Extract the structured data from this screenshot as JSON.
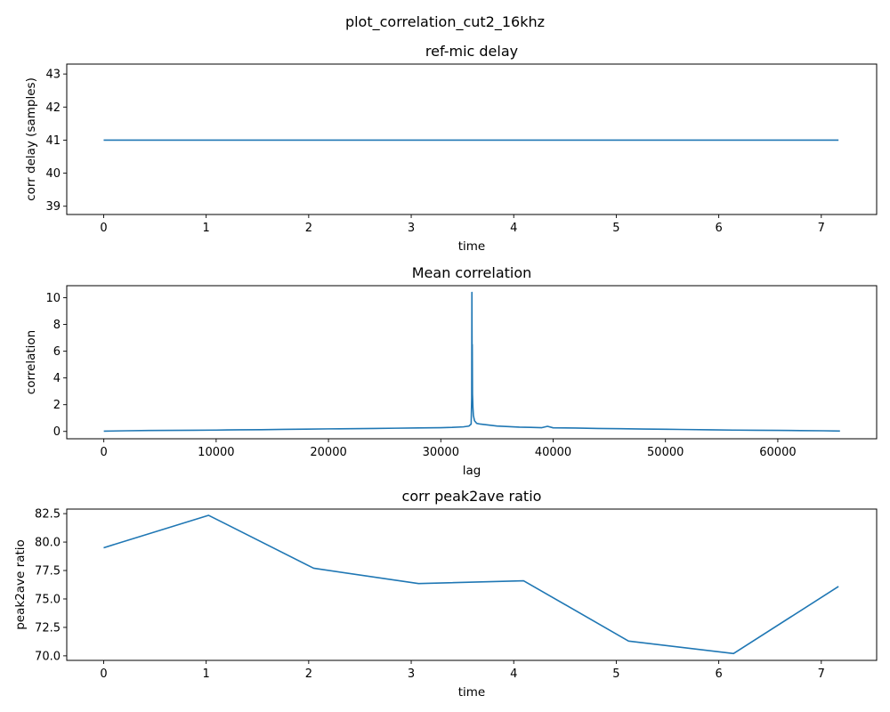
{
  "suptitle": "plot_correlation_cut2_16khz",
  "colors": {
    "series": "#1f77b4",
    "axes": "#000000",
    "background": "#ffffff"
  },
  "chart_data": [
    {
      "type": "line",
      "title": "ref-mic delay",
      "xlabel": "time",
      "ylabel": "corr delay (samples)",
      "xlim": [
        -0.36,
        7.54
      ],
      "ylim": [
        38.75,
        43.3
      ],
      "xticks": [
        0,
        1,
        2,
        3,
        4,
        5,
        6,
        7
      ],
      "xtick_labels": [
        "0",
        "1",
        "2",
        "3",
        "4",
        "5",
        "6",
        "7"
      ],
      "yticks": [
        39,
        40,
        41,
        42,
        43
      ],
      "ytick_labels": [
        "39",
        "40",
        "41",
        "42",
        "43"
      ],
      "grid": false,
      "series": [
        {
          "x": [
            0,
            1.024,
            2.048,
            3.072,
            4.096,
            5.12,
            6.144,
            7.168
          ],
          "y": [
            41,
            41,
            41,
            41,
            41,
            41,
            41,
            41
          ]
        }
      ]
    },
    {
      "type": "line",
      "title": "Mean correlation",
      "xlabel": "lag",
      "ylabel": "correlation",
      "xlim": [
        -3300,
        68800
      ],
      "ylim": [
        -0.55,
        10.9
      ],
      "xticks": [
        0,
        10000,
        20000,
        30000,
        40000,
        50000,
        60000
      ],
      "xtick_labels": [
        "0",
        "10000",
        "20000",
        "30000",
        "40000",
        "50000",
        "60000"
      ],
      "yticks": [
        0,
        2,
        4,
        6,
        8,
        10
      ],
      "ytick_labels": [
        "0",
        "2",
        "4",
        "6",
        "8",
        "10"
      ],
      "grid": false,
      "series": [
        {
          "x": [
            0,
            2000,
            4000,
            6000,
            8000,
            10000,
            12000,
            14000,
            16000,
            18000,
            20000,
            22000,
            24000,
            26000,
            28000,
            30000,
            31000,
            32000,
            32500,
            32700,
            32750,
            32768,
            32790,
            32800,
            32820,
            32860,
            32900,
            33000,
            33200,
            33500,
            34000,
            35000,
            36000,
            37000,
            38000,
            39000,
            39500,
            40000,
            42000,
            44000,
            46000,
            48000,
            50000,
            52000,
            54000,
            56000,
            58000,
            60000,
            62000,
            64000,
            65535
          ],
          "y": [
            0.02,
            0.05,
            0.07,
            0.08,
            0.09,
            0.1,
            0.12,
            0.13,
            0.15,
            0.17,
            0.19,
            0.2,
            0.22,
            0.24,
            0.26,
            0.28,
            0.3,
            0.34,
            0.4,
            0.55,
            2.5,
            10.4,
            4.0,
            6.5,
            2.8,
            1.8,
            1.2,
            0.8,
            0.6,
            0.55,
            0.5,
            0.4,
            0.36,
            0.32,
            0.3,
            0.28,
            0.38,
            0.27,
            0.25,
            0.22,
            0.2,
            0.18,
            0.16,
            0.14,
            0.12,
            0.1,
            0.09,
            0.08,
            0.06,
            0.05,
            0.03
          ]
        }
      ]
    },
    {
      "type": "line",
      "title": "corr peak2ave ratio",
      "xlabel": "time",
      "ylabel": "peak2ave ratio",
      "xlim": [
        -0.36,
        7.54
      ],
      "ylim": [
        69.6,
        82.9
      ],
      "xticks": [
        0,
        1,
        2,
        3,
        4,
        5,
        6,
        7
      ],
      "xtick_labels": [
        "0",
        "1",
        "2",
        "3",
        "4",
        "5",
        "6",
        "7"
      ],
      "yticks": [
        70.0,
        72.5,
        75.0,
        77.5,
        80.0,
        82.5
      ],
      "ytick_labels": [
        "70.0",
        "72.5",
        "75.0",
        "77.5",
        "80.0",
        "82.5"
      ],
      "grid": false,
      "series": [
        {
          "x": [
            0,
            1.024,
            2.048,
            3.072,
            4.096,
            5.12,
            6.144,
            7.168
          ],
          "y": [
            79.5,
            82.35,
            77.7,
            76.35,
            76.6,
            71.3,
            70.2,
            76.1
          ]
        }
      ]
    }
  ]
}
